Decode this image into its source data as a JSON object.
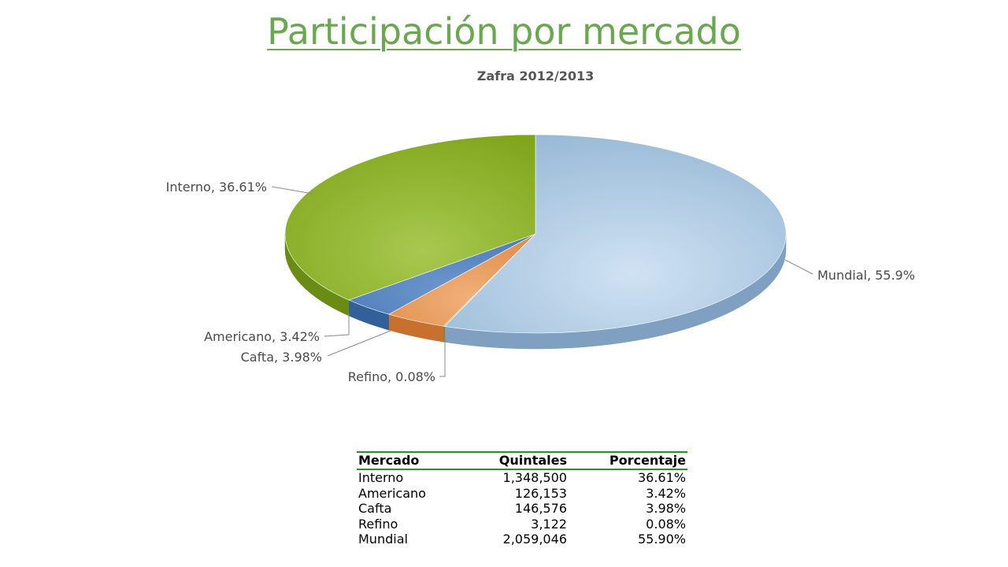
{
  "slide": {
    "title": "Participación por mercado"
  },
  "chart_data": {
    "type": "pie",
    "title": "Zafra 2012/2013",
    "slices": [
      {
        "label": "Mundial, 55.9%",
        "name": "Mundial",
        "value": 55.9,
        "color_top": "#94b6d4",
        "color_light": "#cfe2f3",
        "color_side": "#7fa0c0"
      },
      {
        "label": "Refino, 0.08%",
        "name": "Refino",
        "value": 0.08,
        "color_top": "#7f9f3f",
        "color_light": "#9fbf5f",
        "color_side": "#6a8a30"
      },
      {
        "label": "Cafta, 3.98%",
        "name": "Cafta",
        "value": 3.98,
        "color_top": "#e08a45",
        "color_light": "#f0b07a",
        "color_side": "#c8702e"
      },
      {
        "label": "Americano, 3.42%",
        "name": "Americano",
        "value": 3.42,
        "color_top": "#4a7ab8",
        "color_light": "#6d97cc",
        "color_side": "#34609a"
      },
      {
        "label": "Interno, 36.61%",
        "name": "Interno",
        "value": 36.61,
        "color_top": "#7fa51a",
        "color_light": "#a8c84f",
        "color_side": "#6a8c14"
      }
    ]
  },
  "table": {
    "headers": [
      "Mercado",
      "Quintales",
      "Porcentaje"
    ],
    "rows": [
      [
        "Interno",
        "1,348,500",
        "36.61%"
      ],
      [
        "Americano",
        "126,153",
        "3.42%"
      ],
      [
        "Cafta",
        "146,576",
        "3.98%"
      ],
      [
        "Refino",
        "3,122",
        "0.08%"
      ],
      [
        "Mundial",
        "2,059,046",
        "55.90%"
      ]
    ]
  }
}
